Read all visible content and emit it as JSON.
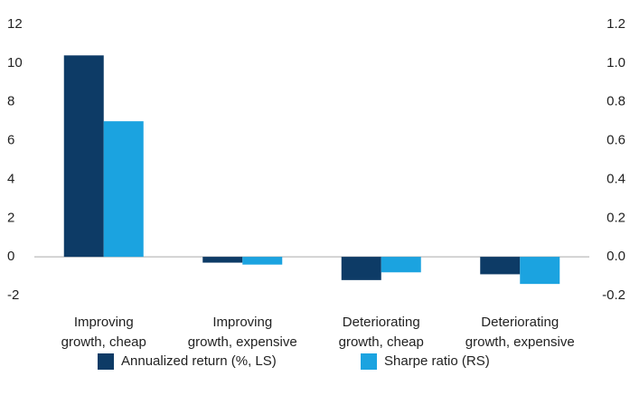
{
  "chart_data": {
    "type": "bar",
    "categories": [
      "Improving\ngrowth, cheap",
      "Improving\ngrowth, expensive",
      "Deteriorating\ngrowth, cheap",
      "Deteriorating\ngrowth, expensive"
    ],
    "series": [
      {
        "name": "Annualized return (%, LS)",
        "color": "#0d3b66",
        "values": [
          10.4,
          -0.3,
          -1.2,
          -0.9
        ]
      },
      {
        "name": "Sharpe ratio (RS)",
        "color": "#1ba3e0",
        "axis": "y2",
        "values": [
          0.7,
          -0.04,
          -0.08,
          -0.14
        ]
      }
    ],
    "ylim": [
      -2,
      12
    ],
    "yticks": [
      -2,
      0,
      2,
      4,
      6,
      8,
      10,
      12
    ],
    "y2lim": [
      -0.2,
      1.2
    ],
    "y2ticks": [
      -0.2,
      {
        "value": 0,
        "label": "0.0"
      },
      0.2,
      0.4,
      0.6,
      0.8,
      {
        "value": 1,
        "label": "1.0"
      },
      1.2
    ],
    "grid": false
  }
}
